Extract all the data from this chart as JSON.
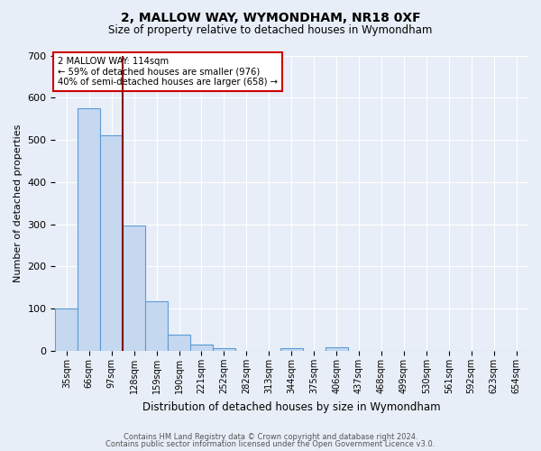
{
  "title1": "2, MALLOW WAY, WYMONDHAM, NR18 0XF",
  "title2": "Size of property relative to detached houses in Wymondham",
  "xlabel": "Distribution of detached houses by size in Wymondham",
  "ylabel": "Number of detached properties",
  "footer1": "Contains HM Land Registry data © Crown copyright and database right 2024.",
  "footer2": "Contains public sector information licensed under the Open Government Licence v3.0.",
  "bar_labels": [
    "35sqm",
    "66sqm",
    "97sqm",
    "128sqm",
    "159sqm",
    "190sqm",
    "221sqm",
    "252sqm",
    "282sqm",
    "313sqm",
    "344sqm",
    "375sqm",
    "406sqm",
    "437sqm",
    "468sqm",
    "499sqm",
    "530sqm",
    "561sqm",
    "592sqm",
    "623sqm",
    "654sqm"
  ],
  "bar_values": [
    100,
    575,
    510,
    297,
    118,
    38,
    15,
    7,
    0,
    0,
    7,
    0,
    8,
    0,
    0,
    0,
    0,
    0,
    0,
    0,
    0
  ],
  "bar_color": "#c5d8f0",
  "bar_edge_color": "#5b9bd5",
  "background_color": "#e8eef8",
  "grid_color": "#ffffff",
  "vline_x": 2.5,
  "vline_color": "#8b0000",
  "annotation_text": "2 MALLOW WAY: 114sqm\n← 59% of detached houses are smaller (976)\n40% of semi-detached houses are larger (658) →",
  "annotation_box_color": "#ffffff",
  "annotation_box_edge": "#cc0000",
  "ylim": [
    0,
    700
  ],
  "yticks": [
    0,
    100,
    200,
    300,
    400,
    500,
    600,
    700
  ]
}
